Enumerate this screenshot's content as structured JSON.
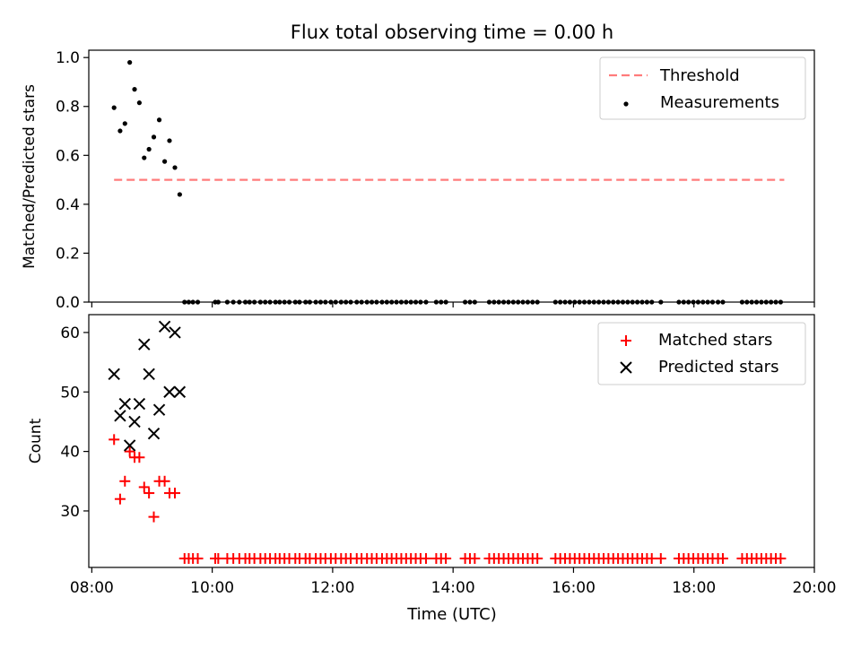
{
  "figure": {
    "title": "Flux total observing time = 0.00 h"
  },
  "chart_data": [
    {
      "type": "scatter",
      "ylabel": "Matched/Predicted stars",
      "xlabel": "",
      "x_unit": "hours UTC",
      "xlim": [
        7.95,
        20.0
      ],
      "ylim": [
        0.0,
        1.03
      ],
      "y_ticks": [
        "0.0",
        "0.2",
        "0.4",
        "0.6",
        "0.8",
        "1.0"
      ],
      "y_tick_values": [
        0.0,
        0.2,
        0.4,
        0.6,
        0.8,
        1.0
      ],
      "legend": {
        "placement": "upper right",
        "entries": [
          "Threshold",
          "Measurements"
        ]
      },
      "threshold": {
        "name": "Threshold",
        "value": 0.5,
        "x_start": 8.37,
        "x_end": 19.5,
        "color": "#ff7b7b"
      },
      "series": [
        {
          "name": "Measurements",
          "color": "#000000",
          "points": [
            [
              8.37,
              0.795
            ],
            [
              8.47,
              0.7
            ],
            [
              8.55,
              0.73
            ],
            [
              8.63,
              0.98
            ],
            [
              8.71,
              0.87
            ],
            [
              8.79,
              0.815
            ],
            [
              8.87,
              0.59
            ],
            [
              8.95,
              0.625
            ],
            [
              9.03,
              0.675
            ],
            [
              9.12,
              0.745
            ],
            [
              9.21,
              0.575
            ],
            [
              9.29,
              0.66
            ],
            [
              9.38,
              0.55
            ],
            [
              9.46,
              0.44
            ],
            [
              9.54,
              0.0
            ],
            [
              9.61,
              0.0
            ],
            [
              9.68,
              0.0
            ],
            [
              9.76,
              0.0
            ],
            [
              10.05,
              0.0
            ],
            [
              10.1,
              0.0
            ],
            [
              10.25,
              0.0
            ],
            [
              10.35,
              0.0
            ],
            [
              10.45,
              0.0
            ],
            [
              10.55,
              0.0
            ],
            [
              10.62,
              0.0
            ],
            [
              10.7,
              0.0
            ],
            [
              10.8,
              0.0
            ],
            [
              10.88,
              0.0
            ],
            [
              10.96,
              0.0
            ],
            [
              11.05,
              0.0
            ],
            [
              11.12,
              0.0
            ],
            [
              11.2,
              0.0
            ],
            [
              11.28,
              0.0
            ],
            [
              11.38,
              0.0
            ],
            [
              11.45,
              0.0
            ],
            [
              11.55,
              0.0
            ],
            [
              11.62,
              0.0
            ],
            [
              11.72,
              0.0
            ],
            [
              11.8,
              0.0
            ],
            [
              11.88,
              0.0
            ],
            [
              11.97,
              0.0
            ],
            [
              12.05,
              0.0
            ],
            [
              12.14,
              0.0
            ],
            [
              12.22,
              0.0
            ],
            [
              12.3,
              0.0
            ],
            [
              12.4,
              0.0
            ],
            [
              12.48,
              0.0
            ],
            [
              12.57,
              0.0
            ],
            [
              12.65,
              0.0
            ],
            [
              12.73,
              0.0
            ],
            [
              12.82,
              0.0
            ],
            [
              12.9,
              0.0
            ],
            [
              12.98,
              0.0
            ],
            [
              13.06,
              0.0
            ],
            [
              13.14,
              0.0
            ],
            [
              13.22,
              0.0
            ],
            [
              13.3,
              0.0
            ],
            [
              13.38,
              0.0
            ],
            [
              13.46,
              0.0
            ],
            [
              13.55,
              0.0
            ],
            [
              13.72,
              0.0
            ],
            [
              13.8,
              0.0
            ],
            [
              13.88,
              0.0
            ],
            [
              14.2,
              0.0
            ],
            [
              14.28,
              0.0
            ],
            [
              14.36,
              0.0
            ],
            [
              14.6,
              0.0
            ],
            [
              14.68,
              0.0
            ],
            [
              14.76,
              0.0
            ],
            [
              14.84,
              0.0
            ],
            [
              14.92,
              0.0
            ],
            [
              15.0,
              0.0
            ],
            [
              15.08,
              0.0
            ],
            [
              15.16,
              0.0
            ],
            [
              15.24,
              0.0
            ],
            [
              15.32,
              0.0
            ],
            [
              15.4,
              0.0
            ],
            [
              15.7,
              0.0
            ],
            [
              15.78,
              0.0
            ],
            [
              15.86,
              0.0
            ],
            [
              15.94,
              0.0
            ],
            [
              16.02,
              0.0
            ],
            [
              16.1,
              0.0
            ],
            [
              16.18,
              0.0
            ],
            [
              16.26,
              0.0
            ],
            [
              16.34,
              0.0
            ],
            [
              16.42,
              0.0
            ],
            [
              16.5,
              0.0
            ],
            [
              16.58,
              0.0
            ],
            [
              16.66,
              0.0
            ],
            [
              16.74,
              0.0
            ],
            [
              16.82,
              0.0
            ],
            [
              16.9,
              0.0
            ],
            [
              16.98,
              0.0
            ],
            [
              17.06,
              0.0
            ],
            [
              17.14,
              0.0
            ],
            [
              17.22,
              0.0
            ],
            [
              17.3,
              0.0
            ],
            [
              17.45,
              0.0
            ],
            [
              17.75,
              0.0
            ],
            [
              17.83,
              0.0
            ],
            [
              17.91,
              0.0
            ],
            [
              17.99,
              0.0
            ],
            [
              18.07,
              0.0
            ],
            [
              18.15,
              0.0
            ],
            [
              18.23,
              0.0
            ],
            [
              18.31,
              0.0
            ],
            [
              18.4,
              0.0
            ],
            [
              18.48,
              0.0
            ],
            [
              18.8,
              0.0
            ],
            [
              18.88,
              0.0
            ],
            [
              18.96,
              0.0
            ],
            [
              19.04,
              0.0
            ],
            [
              19.12,
              0.0
            ],
            [
              19.2,
              0.0
            ],
            [
              19.28,
              0.0
            ],
            [
              19.36,
              0.0
            ],
            [
              19.44,
              0.0
            ]
          ]
        }
      ]
    },
    {
      "type": "scatter",
      "ylabel": "Count",
      "xlabel": "Time (UTC)",
      "x_unit": "hours UTC",
      "xlim": [
        7.95,
        20.0
      ],
      "ylim": [
        20.5,
        63.0
      ],
      "y_ticks": [
        "30",
        "40",
        "50",
        "60"
      ],
      "y_tick_values": [
        30,
        40,
        50,
        60
      ],
      "x_ticks": [
        "08:00",
        "10:00",
        "12:00",
        "14:00",
        "16:00",
        "18:00",
        "20:00"
      ],
      "x_tick_values": [
        8,
        10,
        12,
        14,
        16,
        18,
        20
      ],
      "legend": {
        "placement": "upper right",
        "entries": [
          "Matched stars",
          "Predicted stars"
        ]
      },
      "series": [
        {
          "name": "Matched stars",
          "marker": "plus",
          "color": "#ff0000",
          "points": [
            [
              8.37,
              42
            ],
            [
              8.47,
              32
            ],
            [
              8.55,
              35
            ],
            [
              8.63,
              40
            ],
            [
              8.71,
              39
            ],
            [
              8.79,
              39
            ],
            [
              8.87,
              34
            ],
            [
              8.95,
              33
            ],
            [
              9.03,
              29
            ],
            [
              9.12,
              35
            ],
            [
              9.21,
              35
            ],
            [
              9.29,
              33
            ],
            [
              9.38,
              33
            ],
            [
              9.54,
              22
            ],
            [
              9.61,
              22
            ],
            [
              9.68,
              22
            ],
            [
              9.76,
              22
            ],
            [
              10.05,
              22
            ],
            [
              10.1,
              22
            ],
            [
              10.25,
              22
            ],
            [
              10.35,
              22
            ],
            [
              10.45,
              22
            ],
            [
              10.55,
              22
            ],
            [
              10.62,
              22
            ],
            [
              10.7,
              22
            ],
            [
              10.8,
              22
            ],
            [
              10.88,
              22
            ],
            [
              10.96,
              22
            ],
            [
              11.05,
              22
            ],
            [
              11.12,
              22
            ],
            [
              11.2,
              22
            ],
            [
              11.28,
              22
            ],
            [
              11.38,
              22
            ],
            [
              11.45,
              22
            ],
            [
              11.55,
              22
            ],
            [
              11.62,
              22
            ],
            [
              11.72,
              22
            ],
            [
              11.8,
              22
            ],
            [
              11.88,
              22
            ],
            [
              11.97,
              22
            ],
            [
              12.05,
              22
            ],
            [
              12.14,
              22
            ],
            [
              12.22,
              22
            ],
            [
              12.3,
              22
            ],
            [
              12.4,
              22
            ],
            [
              12.48,
              22
            ],
            [
              12.57,
              22
            ],
            [
              12.65,
              22
            ],
            [
              12.73,
              22
            ],
            [
              12.82,
              22
            ],
            [
              12.9,
              22
            ],
            [
              12.98,
              22
            ],
            [
              13.06,
              22
            ],
            [
              13.14,
              22
            ],
            [
              13.22,
              22
            ],
            [
              13.3,
              22
            ],
            [
              13.38,
              22
            ],
            [
              13.46,
              22
            ],
            [
              13.55,
              22
            ],
            [
              13.72,
              22
            ],
            [
              13.8,
              22
            ],
            [
              13.88,
              22
            ],
            [
              14.2,
              22
            ],
            [
              14.28,
              22
            ],
            [
              14.36,
              22
            ],
            [
              14.6,
              22
            ],
            [
              14.68,
              22
            ],
            [
              14.76,
              22
            ],
            [
              14.84,
              22
            ],
            [
              14.92,
              22
            ],
            [
              15.0,
              22
            ],
            [
              15.08,
              22
            ],
            [
              15.16,
              22
            ],
            [
              15.24,
              22
            ],
            [
              15.32,
              22
            ],
            [
              15.4,
              22
            ],
            [
              15.7,
              22
            ],
            [
              15.78,
              22
            ],
            [
              15.86,
              22
            ],
            [
              15.94,
              22
            ],
            [
              16.02,
              22
            ],
            [
              16.1,
              22
            ],
            [
              16.18,
              22
            ],
            [
              16.26,
              22
            ],
            [
              16.34,
              22
            ],
            [
              16.42,
              22
            ],
            [
              16.5,
              22
            ],
            [
              16.58,
              22
            ],
            [
              16.66,
              22
            ],
            [
              16.74,
              22
            ],
            [
              16.82,
              22
            ],
            [
              16.9,
              22
            ],
            [
              16.98,
              22
            ],
            [
              17.06,
              22
            ],
            [
              17.14,
              22
            ],
            [
              17.22,
              22
            ],
            [
              17.3,
              22
            ],
            [
              17.45,
              22
            ],
            [
              17.75,
              22
            ],
            [
              17.83,
              22
            ],
            [
              17.91,
              22
            ],
            [
              17.99,
              22
            ],
            [
              18.07,
              22
            ],
            [
              18.15,
              22
            ],
            [
              18.23,
              22
            ],
            [
              18.31,
              22
            ],
            [
              18.4,
              22
            ],
            [
              18.48,
              22
            ],
            [
              18.8,
              22
            ],
            [
              18.88,
              22
            ],
            [
              18.96,
              22
            ],
            [
              19.04,
              22
            ],
            [
              19.12,
              22
            ],
            [
              19.2,
              22
            ],
            [
              19.28,
              22
            ],
            [
              19.36,
              22
            ],
            [
              19.44,
              22
            ]
          ]
        },
        {
          "name": "Predicted stars",
          "marker": "x",
          "color": "#000000",
          "points": [
            [
              8.37,
              53
            ],
            [
              8.47,
              46
            ],
            [
              8.55,
              48
            ],
            [
              8.63,
              41
            ],
            [
              8.71,
              45
            ],
            [
              8.79,
              48
            ],
            [
              8.87,
              58
            ],
            [
              8.95,
              53
            ],
            [
              9.03,
              43
            ],
            [
              9.12,
              47
            ],
            [
              9.21,
              61
            ],
            [
              9.29,
              50
            ],
            [
              9.38,
              60
            ],
            [
              9.46,
              50
            ]
          ]
        }
      ]
    }
  ]
}
